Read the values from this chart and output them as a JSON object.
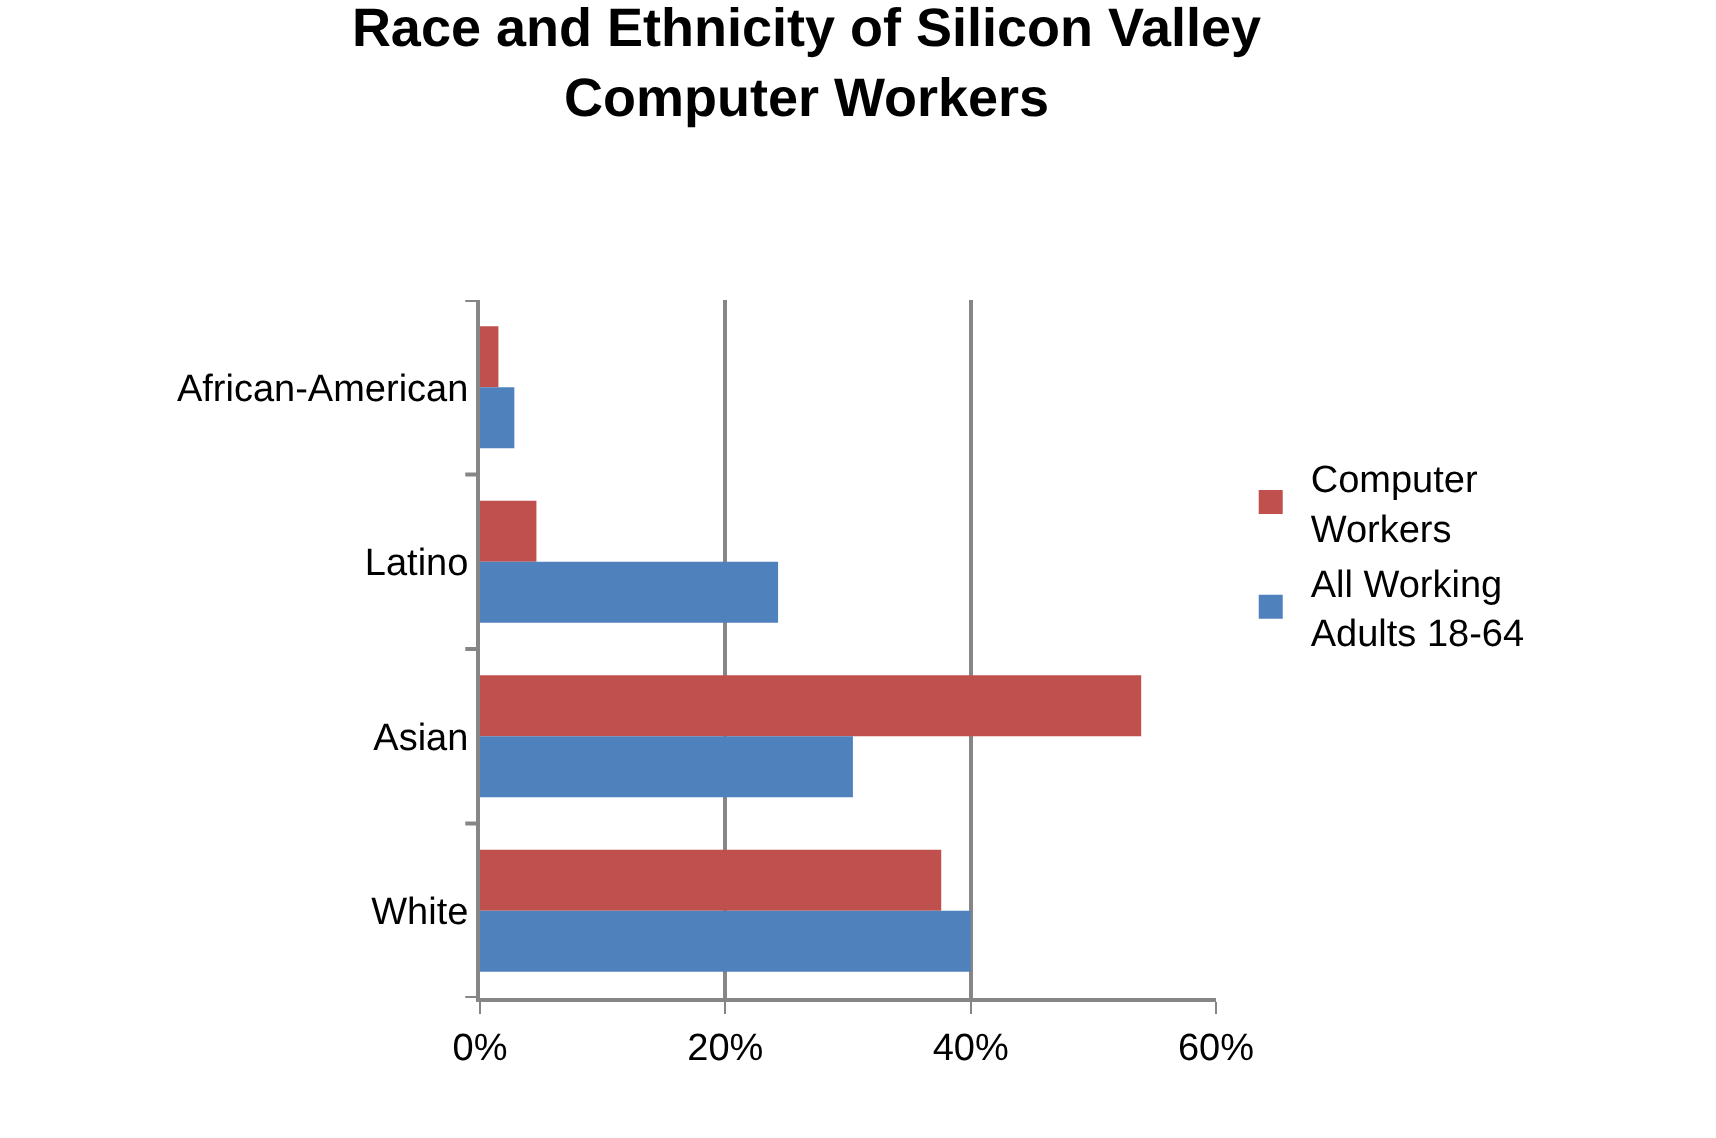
{
  "chart_data": {
    "type": "bar",
    "orientation": "horizontal",
    "title": "Race and Ethnicity of Silicon Valley Computer Workers",
    "categories": [
      "African-American",
      "Latino",
      "Asian",
      "White"
    ],
    "series": [
      {
        "name": "Computer Workers",
        "color": "#c0504d",
        "values": [
          1.5,
          4.6,
          53.9,
          37.6
        ]
      },
      {
        "name": "All Working Adults 18-64",
        "color": "#4f81bd",
        "values": [
          2.8,
          24.3,
          30.4,
          40
        ]
      }
    ],
    "xlim": [
      0,
      60
    ],
    "xticks": [
      {
        "value": 0,
        "label": "0%"
      },
      {
        "value": 20,
        "label": "20%"
      },
      {
        "value": 40,
        "label": "40%"
      },
      {
        "value": 60,
        "label": "60%"
      }
    ],
    "grid": "x",
    "legend": "right"
  }
}
